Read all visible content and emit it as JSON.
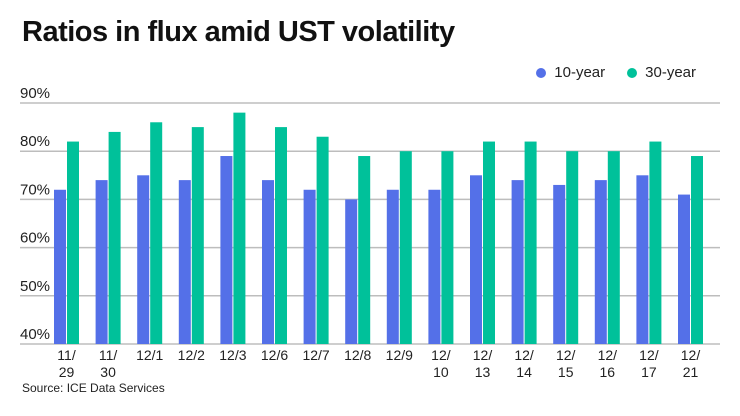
{
  "chart_data": {
    "type": "bar",
    "title": "Ratios in flux amid UST volatility",
    "categories": [
      "11/\n29",
      "11/\n30",
      "12/1",
      "12/2",
      "12/3",
      "12/6",
      "12/7",
      "12/8",
      "12/9",
      "12/\n10",
      "12/\n13",
      "12/\n14",
      "12/\n15",
      "12/\n16",
      "12/\n17",
      "12/\n21"
    ],
    "series": [
      {
        "name": "10-year",
        "color": "#5470e8",
        "values": [
          72,
          74,
          75,
          74,
          79,
          74,
          72,
          70,
          72,
          72,
          75,
          74,
          73,
          74,
          75,
          71
        ]
      },
      {
        "name": "30-year",
        "color": "#00c19a",
        "values": [
          82,
          84,
          86,
          85,
          88,
          85,
          83,
          79,
          80,
          80,
          82,
          82,
          80,
          80,
          82,
          79
        ]
      }
    ],
    "ylim": [
      40,
      90
    ],
    "yticks": [
      40,
      50,
      60,
      70,
      80,
      90
    ],
    "ytick_labels": [
      "40%",
      "50%",
      "60%",
      "70%",
      "80%",
      "90%"
    ],
    "legend": "top-right",
    "grid": true,
    "source": "Source: ICE Data Services"
  }
}
